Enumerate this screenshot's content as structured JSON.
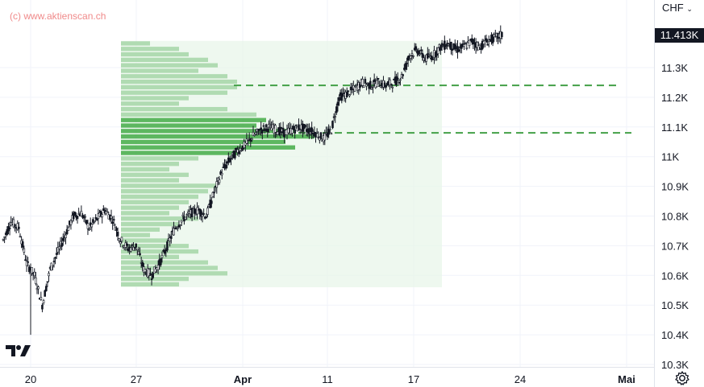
{
  "watermark": "(c) www.aktienscan.ch",
  "currency_selector": "CHF",
  "currency_chevron": "chevron-down",
  "last_price_label": "11.413K",
  "settings_icon": "gear-icon",
  "logo_icon": "tradingview-logo",
  "colors": {
    "grid": "#f0f3fa",
    "candles": "#131722",
    "volume_profile_up": "#4caf50",
    "volume_profile_light": "#a5d6a7",
    "profile_box": "#e8f5e9",
    "dashed_levels": "#43a047",
    "watermark": "#f08a8a"
  },
  "chart_data": {
    "type": "candlestick",
    "y_unit": "CHF",
    "ylim": [
      10280,
      11500
    ],
    "y_ticks": [
      "11.3K",
      "11.2K",
      "11.1K",
      "11K",
      "10.9K",
      "10.8K",
      "10.7K",
      "10.6K",
      "10.5K",
      "10.4K",
      "10.3K"
    ],
    "y_tick_values": [
      11300,
      11200,
      11100,
      11000,
      10900,
      10800,
      10700,
      10600,
      10500,
      10400,
      10300
    ],
    "x_ticks": [
      "20",
      "27",
      "Apr",
      "11",
      "17",
      "24",
      "Mai"
    ],
    "last_price": 11413,
    "price_path": [
      [
        0,
        10720
      ],
      [
        1,
        10780
      ],
      [
        2,
        10760
      ],
      [
        3,
        10640
      ],
      [
        4,
        10600
      ],
      [
        5,
        10500
      ],
      [
        6,
        10620
      ],
      [
        7,
        10680
      ],
      [
        8,
        10740
      ],
      [
        9,
        10800
      ],
      [
        10,
        10810
      ],
      [
        11,
        10760
      ],
      [
        12,
        10790
      ],
      [
        13,
        10820
      ],
      [
        14,
        10790
      ],
      [
        15,
        10720
      ],
      [
        16,
        10690
      ],
      [
        17,
        10700
      ],
      [
        18,
        10620
      ],
      [
        19,
        10600
      ],
      [
        20,
        10640
      ],
      [
        21,
        10700
      ],
      [
        22,
        10760
      ],
      [
        23,
        10790
      ],
      [
        24,
        10810
      ],
      [
        25,
        10820
      ],
      [
        26,
        10800
      ],
      [
        27,
        10880
      ],
      [
        28,
        10950
      ],
      [
        29,
        10990
      ],
      [
        30,
        11020
      ],
      [
        31,
        11040
      ],
      [
        32,
        11070
      ],
      [
        33,
        11090
      ],
      [
        34,
        11100
      ],
      [
        35,
        11090
      ],
      [
        36,
        11080
      ],
      [
        37,
        11090
      ],
      [
        38,
        11100
      ],
      [
        39,
        11090
      ],
      [
        40,
        11080
      ],
      [
        41,
        11060
      ],
      [
        42,
        11090
      ],
      [
        43,
        11200
      ],
      [
        44,
        11210
      ],
      [
        45,
        11230
      ],
      [
        46,
        11250
      ],
      [
        47,
        11240
      ],
      [
        48,
        11250
      ],
      [
        49,
        11240
      ],
      [
        50,
        11250
      ],
      [
        51,
        11270
      ],
      [
        52,
        11340
      ],
      [
        53,
        11360
      ],
      [
        54,
        11330
      ],
      [
        55,
        11340
      ],
      [
        56,
        11370
      ],
      [
        57,
        11380
      ],
      [
        58,
        11360
      ],
      [
        59,
        11370
      ],
      [
        60,
        11390
      ],
      [
        61,
        11370
      ],
      [
        62,
        11390
      ],
      [
        63,
        11400
      ],
      [
        64,
        11413
      ]
    ],
    "volume_profile": {
      "range": [
        10560,
        11390
      ],
      "poc_price": 11080,
      "level_high": 11240,
      "rows_relative_volume": [
        0.15,
        0.3,
        0.35,
        0.45,
        0.5,
        0.4,
        0.55,
        0.6,
        0.6,
        0.55,
        0.35,
        0.3,
        0.55,
        0.7,
        0.75,
        0.7,
        0.9,
        1.0,
        0.85,
        0.9,
        0.6,
        0.4,
        0.3,
        0.25,
        0.35,
        0.3,
        0.5,
        0.45,
        0.4,
        0.35,
        0.3,
        0.25,
        0.4,
        0.3,
        0.2,
        0.15,
        0.25,
        0.35,
        0.4,
        0.3,
        0.45,
        0.5,
        0.55,
        0.35,
        0.3
      ]
    }
  }
}
